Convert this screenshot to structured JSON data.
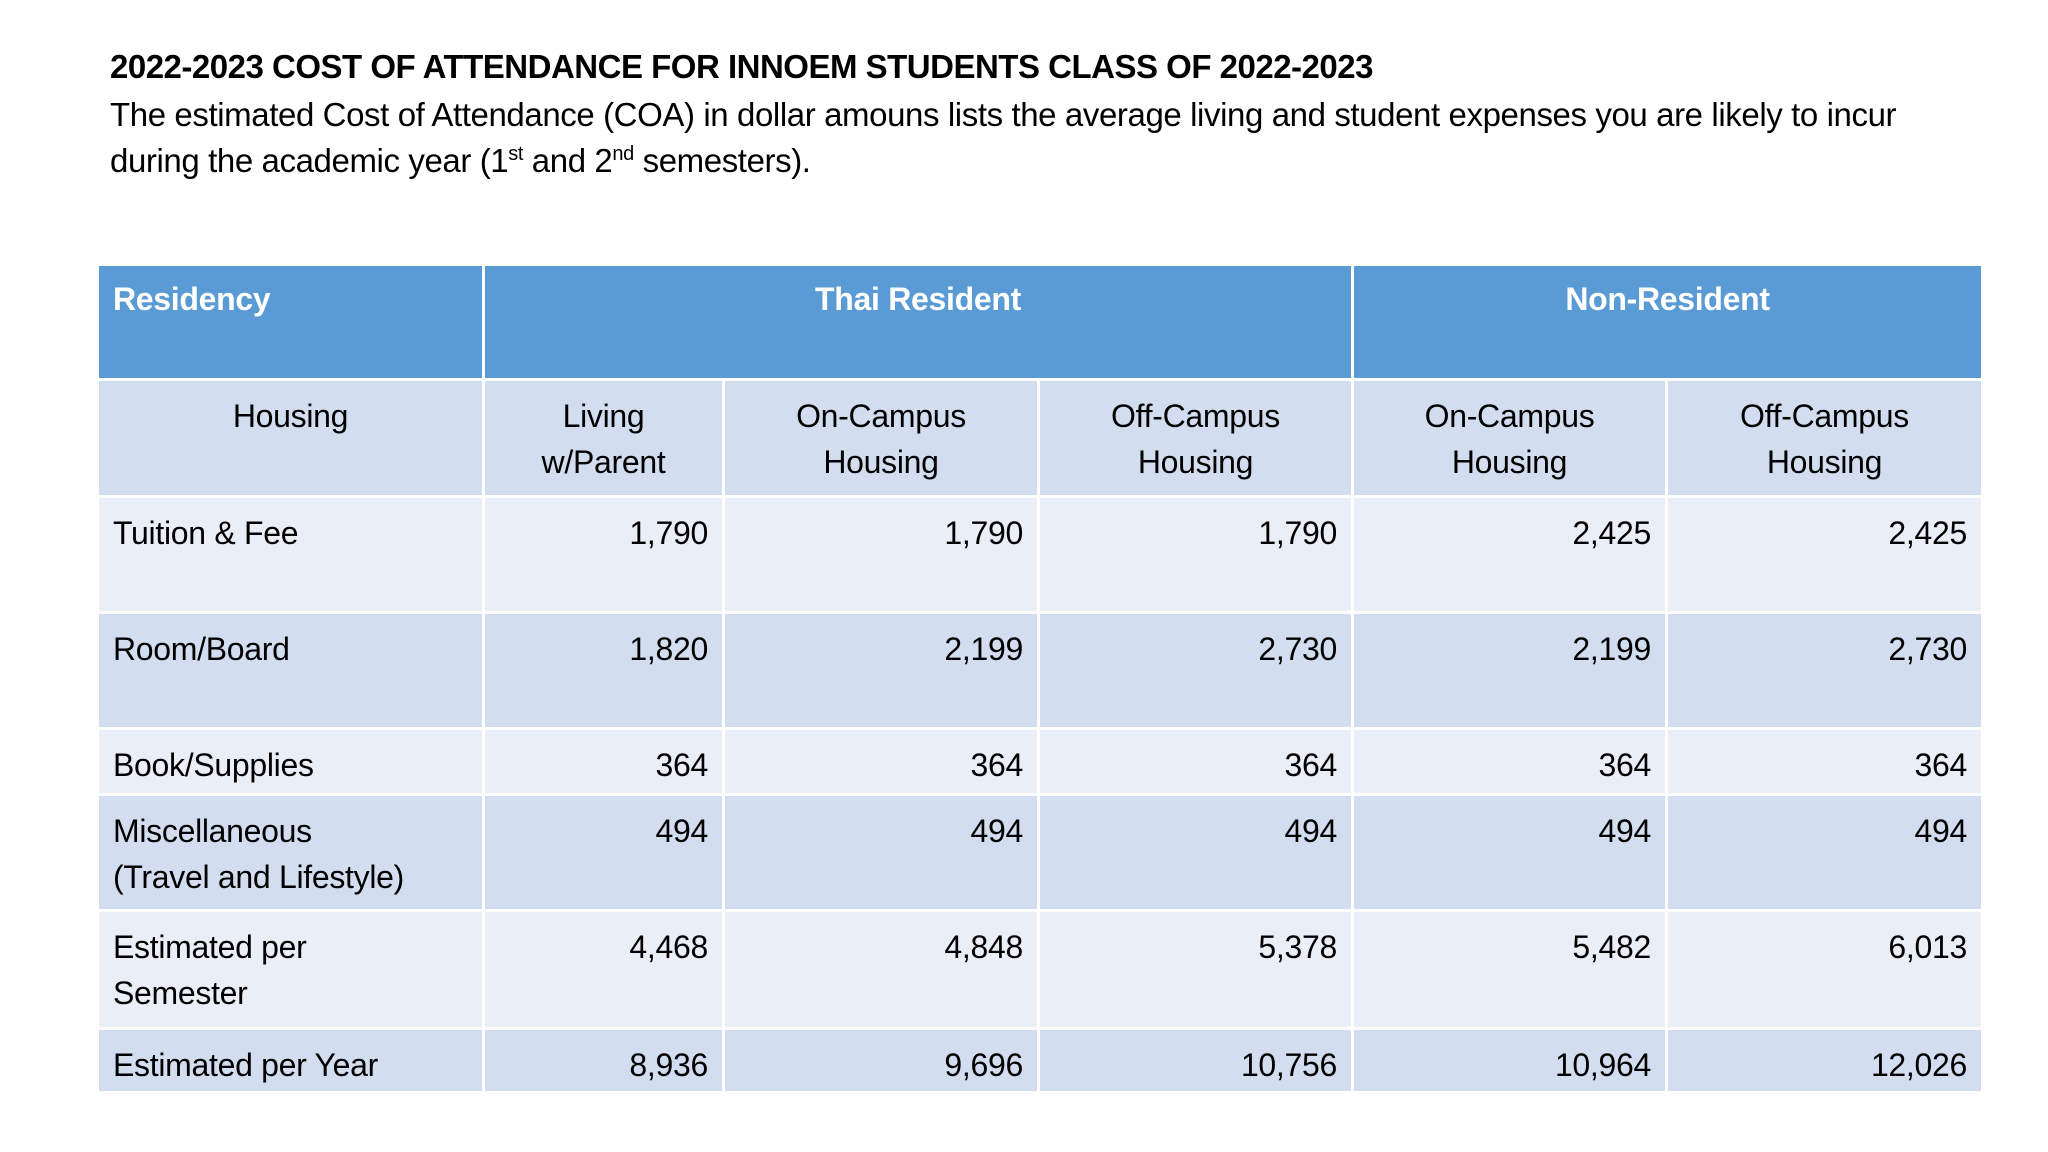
{
  "heading": {
    "title": "2022-2023 COST OF ATTENDANCE FOR INNOEM STUDENTS CLASS OF 2022-2023",
    "intro_part1": "The estimated Cost of Attendance (COA) in dollar amouns lists the average living and student expenses you are likely to incur during the academic year (1",
    "intro_sup1": "st",
    "intro_part2": " and 2",
    "intro_sup2": "nd",
    "intro_part3": " semesters)."
  },
  "table": {
    "residency_label": "Residency",
    "groups": [
      "Thai Resident",
      "Non-Resident"
    ],
    "housing_label": "Housing",
    "columns": [
      [
        "Living",
        "w/Parent"
      ],
      [
        "On-Campus",
        "Housing"
      ],
      [
        "Off-Campus",
        "Housing"
      ],
      [
        "On-Campus",
        "Housing"
      ],
      [
        "Off-Campus",
        "Housing"
      ]
    ],
    "rows": [
      {
        "label": [
          "Tuition & Fee"
        ],
        "values": [
          "1,790",
          "1,790",
          "1,790",
          "2,425",
          "2,425"
        ]
      },
      {
        "label": [
          "Room/Board"
        ],
        "values": [
          "1,820",
          "2,199",
          "2,730",
          "2,199",
          "2,730"
        ]
      },
      {
        "label": [
          "Book/Supplies"
        ],
        "values": [
          "364",
          "364",
          "364",
          "364",
          "364"
        ]
      },
      {
        "label": [
          "Miscellaneous",
          "(Travel and Lifestyle)"
        ],
        "values": [
          "494",
          "494",
          "494",
          "494",
          "494"
        ]
      },
      {
        "label": [
          "Estimated per",
          "Semester"
        ],
        "values": [
          "4,468",
          "4,848",
          "5,378",
          "5,482",
          "6,013"
        ]
      },
      {
        "label": [
          "Estimated per Year"
        ],
        "values": [
          "8,936",
          "9,696",
          "10,756",
          "10,964",
          "12,026"
        ]
      }
    ]
  },
  "colors": {
    "header": "#5B9BD5",
    "band_dark": "#D2DEEF",
    "band_light": "#EAEFF7"
  }
}
